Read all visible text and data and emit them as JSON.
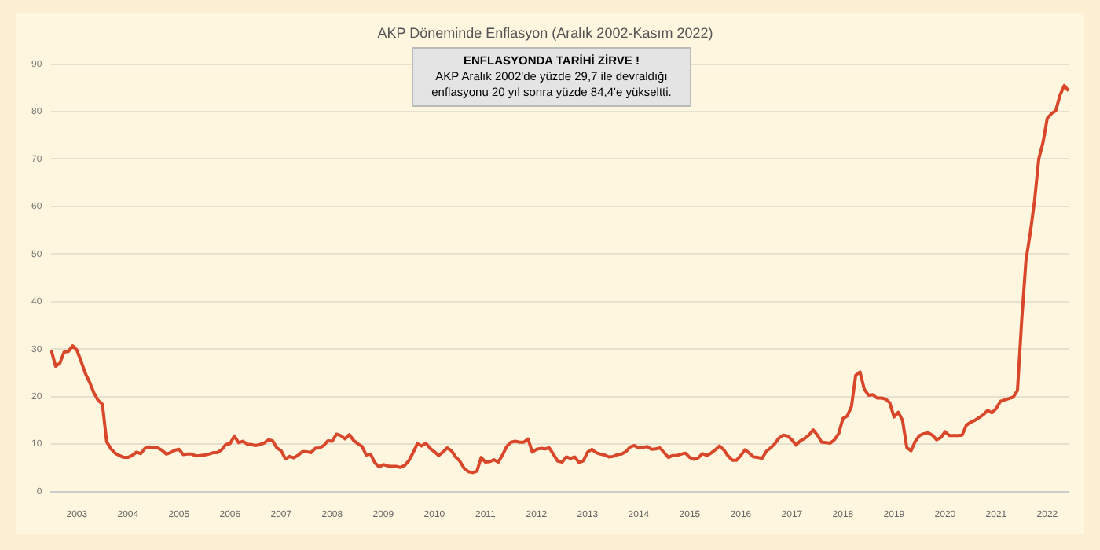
{
  "chart_data": {
    "type": "line",
    "title": "AKP Döneminde Enflasyon (Aralık 2002-Kasım 2022)",
    "annotations": [
      "ENFLASYONDA TARİHİ ZİRVE !",
      "AKP Aralık 2002'de yüzde 29,7 ile devraldığı enflasyonu 20 yıl sonra yüzde 84,4'e yükseltti."
    ],
    "categories": [
      null,
      null,
      null,
      null,
      null,
      null,
      "2003",
      null,
      null,
      null,
      null,
      null,
      null,
      null,
      null,
      null,
      null,
      null,
      "2004",
      null,
      null,
      null,
      null,
      null,
      null,
      null,
      null,
      null,
      null,
      null,
      "2005",
      null,
      null,
      null,
      null,
      null,
      null,
      null,
      null,
      null,
      null,
      null,
      "2006",
      null,
      null,
      null,
      null,
      null,
      null,
      null,
      null,
      null,
      null,
      null,
      "2007",
      null,
      null,
      null,
      null,
      null,
      null,
      null,
      null,
      null,
      null,
      null,
      "2008",
      null,
      null,
      null,
      null,
      null,
      null,
      null,
      null,
      null,
      null,
      null,
      "2009",
      null,
      null,
      null,
      null,
      null,
      null,
      null,
      null,
      null,
      null,
      null,
      "2010",
      null,
      null,
      null,
      null,
      null,
      null,
      null,
      null,
      null,
      null,
      null,
      "2011",
      null,
      null,
      null,
      null,
      null,
      null,
      null,
      null,
      null,
      null,
      null,
      "2012",
      null,
      null,
      null,
      null,
      null,
      null,
      null,
      null,
      null,
      null,
      null,
      "2013",
      null,
      null,
      null,
      null,
      null,
      null,
      null,
      null,
      null,
      null,
      null,
      "2014",
      null,
      null,
      null,
      null,
      null,
      null,
      null,
      null,
      null,
      null,
      null,
      "2015",
      null,
      null,
      null,
      null,
      null,
      null,
      null,
      null,
      null,
      null,
      null,
      "2016",
      null,
      null,
      null,
      null,
      null,
      null,
      null,
      null,
      null,
      null,
      null,
      "2017",
      null,
      null,
      null,
      null,
      null,
      null,
      null,
      null,
      null,
      null,
      null,
      "2018",
      null,
      null,
      null,
      null,
      null,
      null,
      null,
      null,
      null,
      null,
      null,
      "2019",
      null,
      null,
      null,
      null,
      null,
      null,
      null,
      null,
      null,
      null,
      null,
      "2020",
      null,
      null,
      null,
      null,
      null,
      null,
      null,
      null,
      null,
      null,
      null,
      "2021",
      null,
      null,
      null,
      null,
      null,
      null,
      null,
      null,
      null,
      null,
      null,
      "2022",
      null,
      null,
      null,
      null,
      null
    ],
    "series": [
      {
        "color": "#d9472b",
        "values": [
          29.7,
          26.4,
          27.0,
          29.4,
          29.5,
          30.7,
          29.8,
          27.4,
          24.9,
          23.0,
          20.8,
          19.2,
          18.4,
          10.5,
          9.0,
          8.1,
          7.6,
          7.2,
          7.2,
          7.6,
          8.3,
          8.0,
          9.1,
          9.4,
          9.3,
          9.2,
          8.7,
          7.9,
          8.2,
          8.7,
          8.9,
          7.8,
          7.9,
          7.9,
          7.5,
          7.6,
          7.7,
          7.9,
          8.2,
          8.2,
          8.8,
          9.9,
          10.1,
          11.7,
          10.3,
          10.6,
          10.0,
          9.9,
          9.7,
          9.9,
          10.2,
          10.9,
          10.7,
          9.2,
          8.6,
          6.9,
          7.4,
          7.1,
          7.7,
          8.4,
          8.4,
          8.2,
          9.1,
          9.2,
          9.7,
          10.7,
          10.6,
          12.1,
          11.8,
          11.1,
          12.0,
          10.8,
          10.1,
          9.5,
          7.7,
          7.9,
          6.1,
          5.2,
          5.7,
          5.4,
          5.3,
          5.3,
          5.1,
          5.5,
          6.5,
          8.2,
          10.1,
          9.6,
          10.2,
          9.1,
          8.4,
          7.6,
          8.3,
          9.2,
          8.6,
          7.3,
          6.4,
          4.9,
          4.2,
          4.0,
          4.3,
          7.2,
          6.2,
          6.3,
          6.7,
          6.2,
          7.7,
          9.5,
          10.4,
          10.6,
          10.4,
          10.4,
          11.1,
          8.3,
          8.9,
          9.1,
          9.0,
          9.2,
          7.8,
          6.4,
          6.2,
          7.3,
          7.0,
          7.3,
          6.1,
          6.5,
          8.3,
          8.9,
          8.2,
          7.9,
          7.7,
          7.3,
          7.4,
          7.8,
          7.9,
          8.4,
          9.4,
          9.7,
          9.2,
          9.3,
          9.5,
          8.9,
          9.0,
          9.2,
          8.2,
          7.2,
          7.6,
          7.6,
          7.9,
          8.1,
          7.2,
          6.8,
          7.1,
          8.0,
          7.6,
          8.1,
          8.8,
          9.6,
          8.8,
          7.5,
          6.6,
          6.6,
          7.6,
          8.8,
          8.1,
          7.3,
          7.2,
          7.0,
          8.5,
          9.2,
          10.1,
          11.3,
          11.9,
          11.7,
          10.9,
          9.8,
          10.7,
          11.2,
          11.9,
          13.0,
          11.9,
          10.4,
          10.3,
          10.2,
          10.9,
          12.2,
          15.4,
          15.9,
          17.9,
          24.5,
          25.2,
          21.6,
          20.3,
          20.4,
          19.7,
          19.7,
          19.5,
          18.7,
          15.7,
          16.7,
          15.0,
          9.3,
          8.6,
          10.6,
          11.8,
          12.2,
          12.4,
          11.9,
          10.9,
          11.4,
          12.6,
          11.8,
          11.8,
          11.8,
          11.9,
          14.0,
          14.6,
          15.0,
          15.6,
          16.2,
          17.1,
          16.6,
          17.5,
          19.0,
          19.3,
          19.6,
          19.9,
          21.3,
          36.1,
          48.7,
          54.4,
          61.1,
          70.0,
          73.5,
          78.6,
          79.6,
          80.2,
          83.5,
          85.5,
          84.4
        ]
      }
    ],
    "ylim": [
      0,
      90
    ],
    "yticks": [
      0,
      10,
      20,
      30,
      40,
      50,
      60,
      70,
      80,
      90
    ],
    "grid": "y",
    "legend": false,
    "marker": "none",
    "line_style": "solid"
  }
}
